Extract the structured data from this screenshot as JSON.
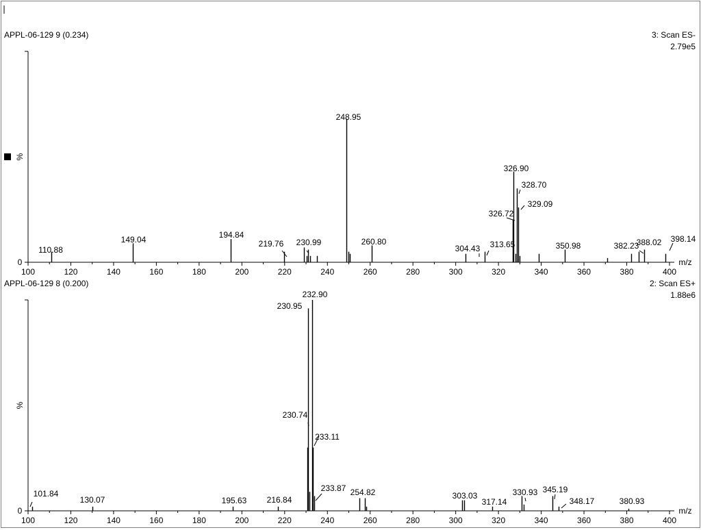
{
  "chart_data": [
    {
      "type": "bar",
      "sample_label": "APPL-06-129 9 (0.234)",
      "scan_label": "3: Scan ES-",
      "intensity_label": "2.79e5",
      "ylabel": "%",
      "xlabel": "m/z",
      "zero_label": "0",
      "xlim": [
        100,
        400
      ],
      "ylim": [
        0,
        100
      ],
      "xticks": [
        100,
        120,
        140,
        160,
        180,
        200,
        220,
        240,
        260,
        280,
        300,
        320,
        340,
        360,
        380,
        400
      ],
      "peaks": [
        {
          "mz": 110.88,
          "rel": 5
        },
        {
          "mz": 149.04,
          "rel": 9
        },
        {
          "mz": 194.84,
          "rel": 11
        },
        {
          "mz": 219.76,
          "rel": 5
        },
        {
          "mz": 229.0,
          "rel": 7
        },
        {
          "mz": 230.2,
          "rel": 3
        },
        {
          "mz": 230.99,
          "rel": 6
        },
        {
          "mz": 232.0,
          "rel": 3
        },
        {
          "mz": 235.0,
          "rel": 3
        },
        {
          "mz": 248.95,
          "rel": 68
        },
        {
          "mz": 249.9,
          "rel": 5
        },
        {
          "mz": 250.6,
          "rel": 4
        },
        {
          "mz": 260.8,
          "rel": 8
        },
        {
          "mz": 304.43,
          "rel": 4
        },
        {
          "mz": 313.65,
          "rel": 5
        },
        {
          "mz": 326.72,
          "rel": 20
        },
        {
          "mz": 326.9,
          "rel": 43
        },
        {
          "mz": 328.0,
          "rel": 4
        },
        {
          "mz": 328.7,
          "rel": 35
        },
        {
          "mz": 329.09,
          "rel": 26
        },
        {
          "mz": 330.0,
          "rel": 3
        },
        {
          "mz": 339.0,
          "rel": 4
        },
        {
          "mz": 350.98,
          "rel": 6
        },
        {
          "mz": 371.0,
          "rel": 2
        },
        {
          "mz": 382.23,
          "rel": 4
        },
        {
          "mz": 385.5,
          "rel": 5
        },
        {
          "mz": 388.02,
          "rel": 6
        },
        {
          "mz": 398.14,
          "rel": 4
        }
      ],
      "labels": [
        {
          "text": "110.88",
          "mz": 110.88
        },
        {
          "text": "149.04",
          "mz": 149.04
        },
        {
          "text": "194.84",
          "mz": 194.84
        },
        {
          "text": "219.76",
          "mz": 219.76
        },
        {
          "text": "230.99",
          "mz": 230.99
        },
        {
          "text": "248.95",
          "mz": 248.95
        },
        {
          "text": "260.80",
          "mz": 260.8
        },
        {
          "text": "304.43",
          "mz": 304.43
        },
        {
          "text": "313.65",
          "mz": 313.65
        },
        {
          "text": "326.72",
          "mz": 326.72
        },
        {
          "text": "326.90",
          "mz": 326.9
        },
        {
          "text": "328.70",
          "mz": 328.7
        },
        {
          "text": "329.09",
          "mz": 329.09
        },
        {
          "text": "350.98",
          "mz": 350.98
        },
        {
          "text": "382.23",
          "mz": 382.23
        },
        {
          "text": "388.02",
          "mz": 388.02
        },
        {
          "text": "398.14",
          "mz": 398.14
        }
      ]
    },
    {
      "type": "bar",
      "sample_label": "APPL-06-129 8 (0.200)",
      "scan_label": "2: Scan ES+",
      "intensity_label": "1.88e6",
      "ylabel": "%",
      "xlabel": "m/z",
      "zero_label": "0",
      "xlim": [
        100,
        400
      ],
      "ylim": [
        0,
        100
      ],
      "xticks": [
        100,
        120,
        140,
        160,
        180,
        200,
        220,
        240,
        260,
        280,
        300,
        320,
        340,
        360,
        380,
        400
      ],
      "peaks": [
        {
          "mz": 101.84,
          "rel": 2
        },
        {
          "mz": 130.07,
          "rel": 2
        },
        {
          "mz": 195.63,
          "rel": 2
        },
        {
          "mz": 216.84,
          "rel": 2
        },
        {
          "mz": 230.74,
          "rel": 30
        },
        {
          "mz": 230.95,
          "rel": 96
        },
        {
          "mz": 231.6,
          "rel": 9
        },
        {
          "mz": 232.9,
          "rel": 100
        },
        {
          "mz": 233.11,
          "rel": 30
        },
        {
          "mz": 233.87,
          "rel": 7
        },
        {
          "mz": 254.82,
          "rel": 6
        },
        {
          "mz": 257.5,
          "rel": 6
        },
        {
          "mz": 258.2,
          "rel": 2
        },
        {
          "mz": 303.03,
          "rel": 5
        },
        {
          "mz": 303.8,
          "rel": 5
        },
        {
          "mz": 317.14,
          "rel": 2
        },
        {
          "mz": 330.93,
          "rel": 7
        },
        {
          "mz": 331.8,
          "rel": 3
        },
        {
          "mz": 345.19,
          "rel": 7
        },
        {
          "mz": 348.17,
          "rel": 2
        },
        {
          "mz": 380.93,
          "rel": 1
        }
      ],
      "labels": [
        {
          "text": "101.84",
          "mz": 101.84
        },
        {
          "text": "130.07",
          "mz": 130.07
        },
        {
          "text": "195.63",
          "mz": 195.63
        },
        {
          "text": "216.84",
          "mz": 216.84
        },
        {
          "text": "230.95",
          "mz": 230.95
        },
        {
          "text": "232.90",
          "mz": 232.9
        },
        {
          "text": "230.74",
          "mz": 230.74
        },
        {
          "text": "233.11",
          "mz": 233.11
        },
        {
          "text": "233.87",
          "mz": 233.87
        },
        {
          "text": "254.82",
          "mz": 254.82
        },
        {
          "text": "303.03",
          "mz": 303.03
        },
        {
          "text": "317.14",
          "mz": 317.14
        },
        {
          "text": "330.93",
          "mz": 330.93
        },
        {
          "text": "345.19",
          "mz": 345.19
        },
        {
          "text": "348.17",
          "mz": 348.17
        },
        {
          "text": "380.93",
          "mz": 380.93
        }
      ]
    }
  ]
}
